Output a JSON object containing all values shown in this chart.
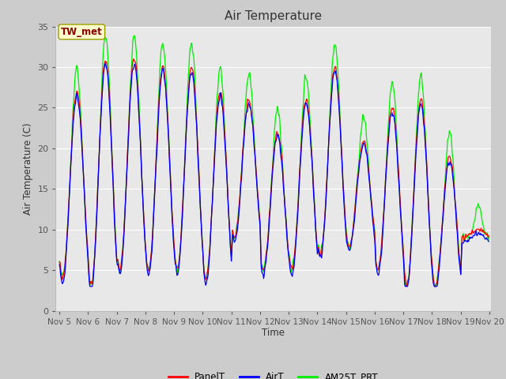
{
  "title": "Air Temperature",
  "ylabel": "Air Temperature (C)",
  "xlabel": "Time",
  "annotation": "TW_met",
  "annotation_color": "#8B0000",
  "annotation_bg": "#FFFFCC",
  "annotation_border": "#999900",
  "ylim": [
    0,
    35
  ],
  "xlim_days": [
    4.87,
    20.05
  ],
  "xtick_days": [
    5,
    6,
    7,
    8,
    9,
    10,
    11,
    12,
    13,
    14,
    15,
    16,
    17,
    18,
    19,
    20
  ],
  "xtick_labels": [
    "Nov 5",
    "Nov 6",
    "Nov 7",
    "Nov 8",
    "Nov 9",
    "Nov 10",
    "Nov 11",
    "Nov 12",
    "Nov 13",
    "Nov 14",
    "Nov 15",
    "Nov 16",
    "Nov 17",
    "Nov 18",
    "Nov 19",
    "Nov 20"
  ],
  "ytick_values": [
    0,
    5,
    10,
    15,
    20,
    25,
    30,
    35
  ],
  "grid_color": "#ffffff",
  "plot_bg": "#e8e8e8",
  "fig_bg": "#cccccc",
  "line_panelT_color": "red",
  "line_airT_color": "blue",
  "line_am25T_color": "#00ee00",
  "line_width": 0.9,
  "legend_labels": [
    "PanelT",
    "AirT",
    "AM25T_PRT"
  ],
  "legend_colors": [
    "red",
    "blue",
    "#00ee00"
  ]
}
